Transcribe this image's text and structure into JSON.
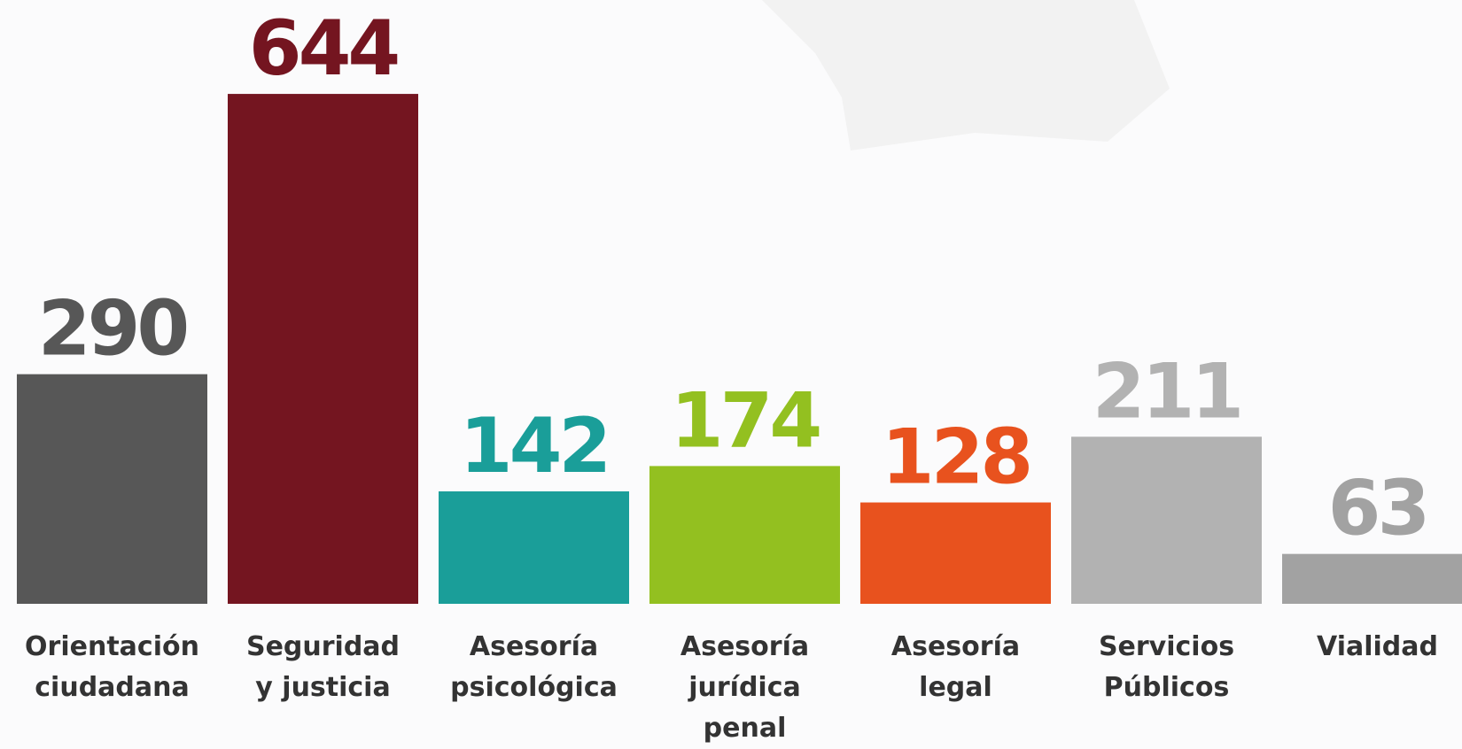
{
  "chart_data": {
    "type": "bar",
    "categories": [
      "Orientación\nciudadana",
      "Seguridad\ny justicia",
      "Asesoría\npsicológica",
      "Asesoría\njurídica\npenal",
      "Asesoría\nlegal",
      "Servicios\nPúblicos",
      "Vialidad"
    ],
    "values": [
      290,
      644,
      142,
      174,
      128,
      211,
      63
    ],
    "colors": [
      "#575757",
      "#741520",
      "#1a9e99",
      "#93c020",
      "#e8521e",
      "#b2b2b2",
      "#a2a2a2"
    ],
    "ylim": [
      0,
      700
    ]
  }
}
